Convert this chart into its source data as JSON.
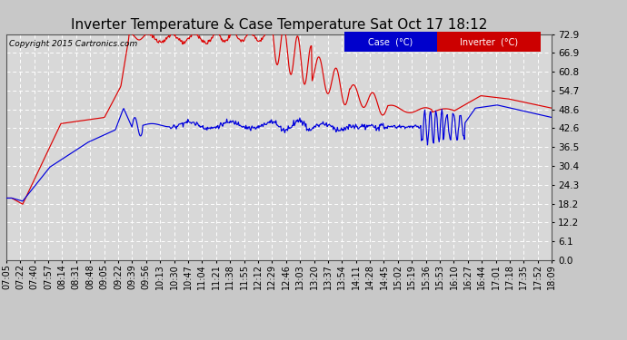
{
  "title": "Inverter Temperature & Case Temperature Sat Oct 17 18:12",
  "copyright": "Copyright 2015 Cartronics.com",
  "yticks": [
    0.0,
    6.1,
    12.2,
    18.2,
    24.3,
    30.4,
    36.5,
    42.6,
    48.6,
    54.7,
    60.8,
    66.9,
    72.9
  ],
  "ylim": [
    0.0,
    72.9
  ],
  "xtick_labels": [
    "07:05",
    "07:22",
    "07:40",
    "07:57",
    "08:14",
    "08:31",
    "08:48",
    "09:05",
    "09:22",
    "09:39",
    "09:56",
    "10:13",
    "10:30",
    "10:47",
    "11:04",
    "11:21",
    "11:38",
    "11:55",
    "12:12",
    "12:29",
    "12:46",
    "13:03",
    "13:20",
    "13:37",
    "13:54",
    "14:11",
    "14:28",
    "14:45",
    "15:02",
    "15:19",
    "15:36",
    "15:53",
    "16:10",
    "16:27",
    "16:44",
    "17:01",
    "17:18",
    "17:35",
    "17:52",
    "18:09"
  ],
  "background_color": "#c8c8c8",
  "plot_bg_color": "#d8d8d8",
  "grid_color": "#ffffff",
  "case_color": "#0000dd",
  "inverter_color": "#dd0000",
  "title_fontsize": 11,
  "tick_fontsize": 7.5,
  "legend_case_bg": "#0000cc",
  "legend_inv_bg": "#cc0000"
}
